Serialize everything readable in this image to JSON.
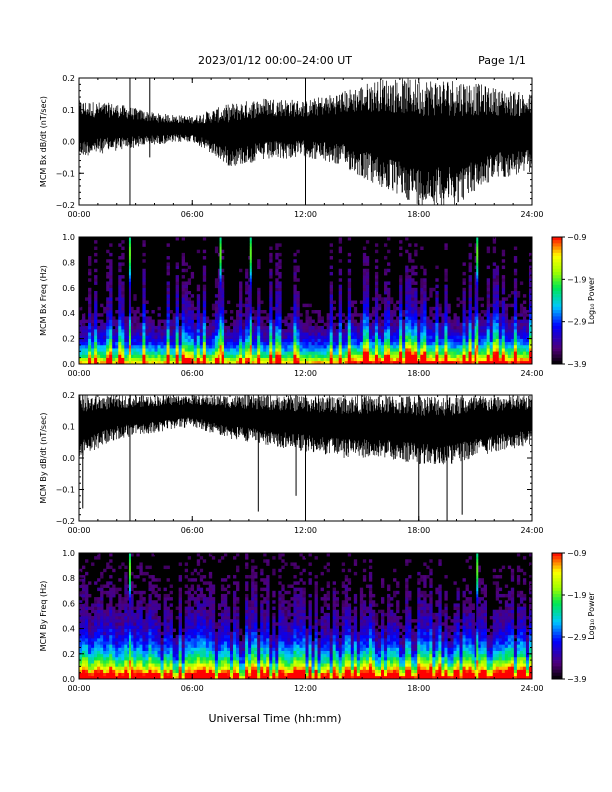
{
  "header": {
    "title": "2023/01/12  00:00–24:00 UT",
    "page": "Page 1/1"
  },
  "footer": {
    "xlabel": "Universal Time (hh:mm)"
  },
  "colorbar_label": "Log₁₀ Power",
  "chart_data": [
    {
      "type": "line",
      "ylabel": "MCM Bx dB/dt (nT/sec)",
      "xlim": [
        0,
        24
      ],
      "ylim": [
        -0.2,
        0.2
      ],
      "y_ticks": [
        "-0.2",
        "-0.1",
        "0.0",
        "0.1",
        "0.2"
      ],
      "x_ticks": [
        "00:00",
        "06:00",
        "12:00",
        "18:00",
        "24:00"
      ],
      "envelope": [
        {
          "x": 0,
          "lo": -0.05,
          "hi": 0.13
        },
        {
          "x": 2,
          "lo": -0.03,
          "hi": 0.12
        },
        {
          "x": 4,
          "lo": -0.01,
          "hi": 0.09
        },
        {
          "x": 6,
          "lo": 0.0,
          "hi": 0.08
        },
        {
          "x": 8,
          "lo": -0.08,
          "hi": 0.12
        },
        {
          "x": 10,
          "lo": -0.06,
          "hi": 0.14
        },
        {
          "x": 12,
          "lo": -0.05,
          "hi": 0.13
        },
        {
          "x": 14,
          "lo": -0.08,
          "hi": 0.16
        },
        {
          "x": 16,
          "lo": -0.15,
          "hi": 0.2
        },
        {
          "x": 18,
          "lo": -0.2,
          "hi": 0.2
        },
        {
          "x": 20,
          "lo": -0.2,
          "hi": 0.2
        },
        {
          "x": 22,
          "lo": -0.12,
          "hi": 0.17
        },
        {
          "x": 24,
          "lo": -0.1,
          "hi": 0.15
        }
      ],
      "spikes": [
        {
          "x": 2.7,
          "lo": -0.2,
          "hi": 0.2
        },
        {
          "x": 3.75,
          "lo": -0.05,
          "hi": 0.2
        },
        {
          "x": 12.0,
          "lo": -0.2,
          "hi": 0.2
        }
      ]
    },
    {
      "type": "heatmap",
      "ylabel": "MCM Bx Freq (Hz)",
      "xlim": [
        0,
        24
      ],
      "ylim": [
        0,
        1.0
      ],
      "y_ticks": [
        "0.0",
        "0.2",
        "0.4",
        "0.6",
        "0.8",
        "1.0"
      ],
      "x_ticks": [
        "00:00",
        "06:00",
        "12:00",
        "18:00",
        "24:00"
      ],
      "colorbar": {
        "min": -3.9,
        "max": -0.9,
        "ticks": [
          "-0.9",
          "-1.9",
          "-2.9",
          "-3.9"
        ]
      },
      "activity": 0.35,
      "bright_lines": [
        2.7,
        7.5,
        9.1,
        21.1
      ]
    },
    {
      "type": "line",
      "ylabel": "MCM By dB/dt (nT/sec)",
      "xlim": [
        0,
        24
      ],
      "ylim": [
        -0.2,
        0.2
      ],
      "y_ticks": [
        "-0.2",
        "-0.1",
        "0.0",
        "0.1",
        "0.2"
      ],
      "x_ticks": [
        "00:00",
        "06:00",
        "12:00",
        "18:00",
        "24:00"
      ],
      "envelope": [
        {
          "x": 0,
          "lo": 0.0,
          "hi": 0.2
        },
        {
          "x": 2,
          "lo": 0.06,
          "hi": 0.2
        },
        {
          "x": 4,
          "lo": 0.08,
          "hi": 0.2
        },
        {
          "x": 6,
          "lo": 0.1,
          "hi": 0.2
        },
        {
          "x": 8,
          "lo": 0.06,
          "hi": 0.2
        },
        {
          "x": 10,
          "lo": 0.04,
          "hi": 0.2
        },
        {
          "x": 12,
          "lo": 0.02,
          "hi": 0.2
        },
        {
          "x": 14,
          "lo": 0.0,
          "hi": 0.2
        },
        {
          "x": 16,
          "lo": 0.0,
          "hi": 0.2
        },
        {
          "x": 18,
          "lo": -0.02,
          "hi": 0.2
        },
        {
          "x": 20,
          "lo": -0.02,
          "hi": 0.2
        },
        {
          "x": 22,
          "lo": 0.02,
          "hi": 0.2
        },
        {
          "x": 24,
          "lo": 0.04,
          "hi": 0.2
        }
      ],
      "spikes": [
        {
          "x": 0.2,
          "lo": -0.16,
          "hi": 0.2
        },
        {
          "x": 2.7,
          "lo": -0.2,
          "hi": 0.2
        },
        {
          "x": 9.5,
          "lo": -0.17,
          "hi": 0.2
        },
        {
          "x": 11.5,
          "lo": -0.12,
          "hi": 0.2
        },
        {
          "x": 12.0,
          "lo": -0.2,
          "hi": 0.2
        },
        {
          "x": 18.0,
          "lo": -0.2,
          "hi": 0.2
        },
        {
          "x": 19.5,
          "lo": -0.2,
          "hi": 0.2
        },
        {
          "x": 20.3,
          "lo": -0.18,
          "hi": 0.2
        }
      ]
    },
    {
      "type": "heatmap",
      "ylabel": "MCM By Freq (Hz)",
      "xlim": [
        0,
        24
      ],
      "ylim": [
        0,
        1.0
      ],
      "y_ticks": [
        "0.0",
        "0.2",
        "0.4",
        "0.6",
        "0.8",
        "1.0"
      ],
      "x_ticks": [
        "00:00",
        "06:00",
        "12:00",
        "18:00",
        "24:00"
      ],
      "colorbar": {
        "min": -3.9,
        "max": -0.9,
        "ticks": [
          "-0.9",
          "-1.9",
          "-2.9",
          "-3.9"
        ]
      },
      "activity": 0.8,
      "bright_lines": [
        2.7,
        21.1
      ]
    }
  ]
}
